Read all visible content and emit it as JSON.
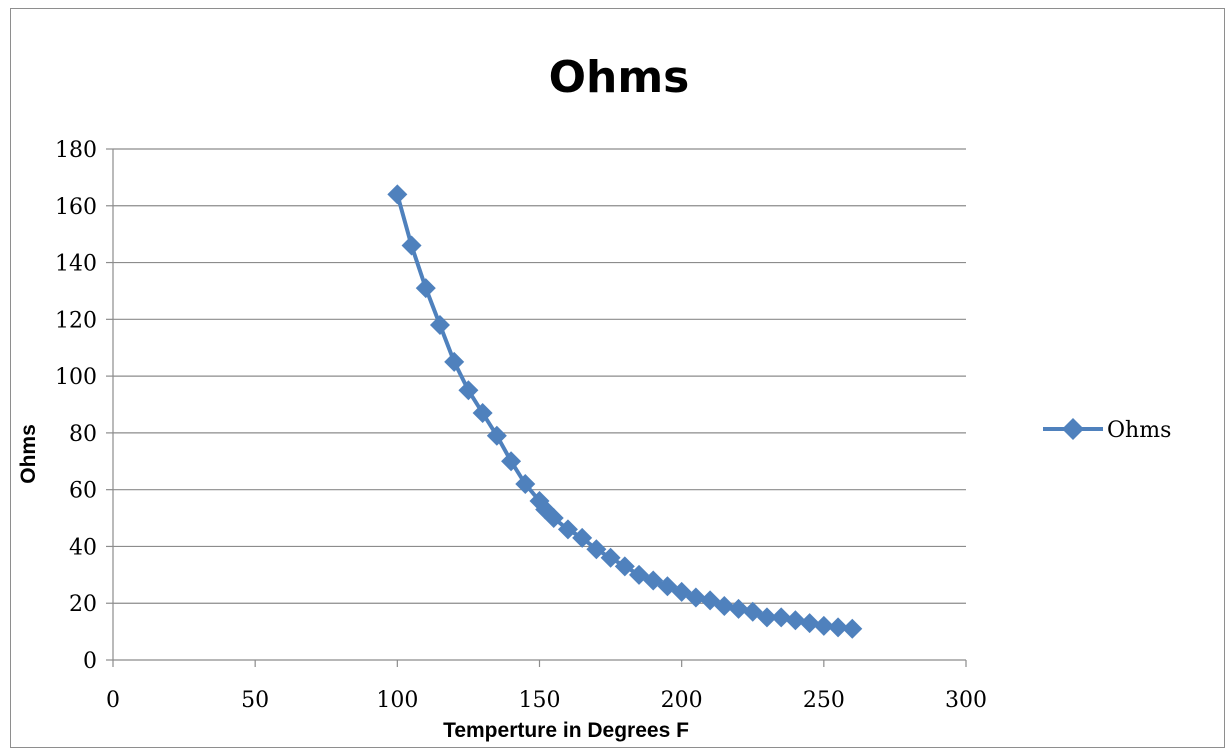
{
  "chart_data": {
    "type": "line",
    "title": "Ohms",
    "xlabel": "Temperture in Degrees F",
    "ylabel": "Ohms",
    "xlim": [
      0,
      300
    ],
    "ylim": [
      0,
      180
    ],
    "x_ticks": [
      0,
      50,
      100,
      150,
      200,
      250,
      300
    ],
    "y_ticks": [
      0,
      20,
      40,
      60,
      80,
      100,
      120,
      140,
      160,
      180
    ],
    "grid": "horizontal",
    "legend": "right",
    "series": [
      {
        "name": "Ohms",
        "color": "#4F81BD",
        "marker": "diamond",
        "points": [
          [
            100,
            164
          ],
          [
            105,
            146
          ],
          [
            110,
            131
          ],
          [
            115,
            118
          ],
          [
            120,
            105
          ],
          [
            125,
            95
          ],
          [
            130,
            87
          ],
          [
            135,
            79
          ],
          [
            140,
            70
          ],
          [
            145,
            62
          ],
          [
            150,
            56
          ],
          [
            152,
            53
          ],
          [
            155,
            50
          ],
          [
            160,
            46
          ],
          [
            165,
            43
          ],
          [
            170,
            39
          ],
          [
            175,
            36
          ],
          [
            180,
            33
          ],
          [
            185,
            30
          ],
          [
            190,
            28
          ],
          [
            195,
            26
          ],
          [
            200,
            24
          ],
          [
            205,
            22
          ],
          [
            210,
            21
          ],
          [
            215,
            19
          ],
          [
            220,
            18
          ],
          [
            225,
            17
          ],
          [
            230,
            15
          ],
          [
            235,
            15
          ],
          [
            240,
            14
          ],
          [
            245,
            13
          ],
          [
            250,
            12
          ],
          [
            255,
            11.5
          ],
          [
            260,
            11
          ]
        ]
      }
    ]
  }
}
